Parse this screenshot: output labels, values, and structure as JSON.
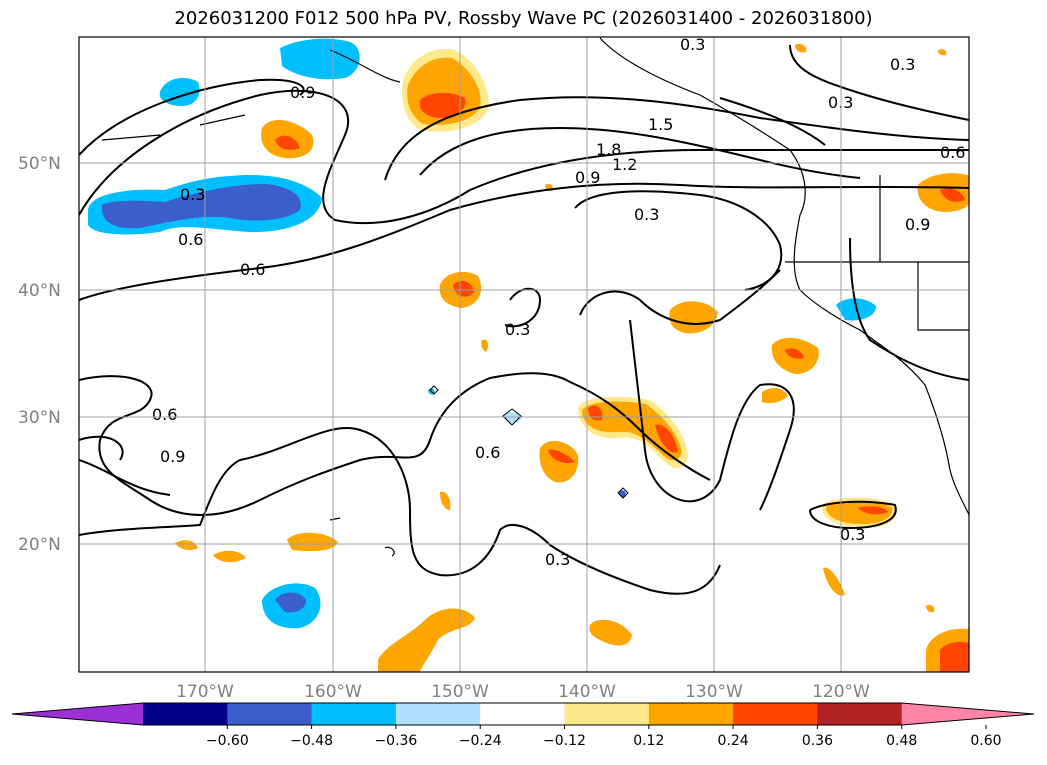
{
  "title": "2026031200 F012 500 hPa PV, Rossby Wave PC (2026031400 - 2026031800)",
  "map": {
    "lat_ticks": [
      "50°N",
      "40°N",
      "30°N",
      "20°N"
    ],
    "lon_ticks": [
      "170°W",
      "160°W",
      "150°W",
      "140°W",
      "130°W",
      "120°W"
    ],
    "contour_labels": [
      "0.3",
      "0.3",
      "0.3",
      "0.3",
      "0.3",
      "0.3",
      "0.3",
      "0.3",
      "0.6",
      "0.6",
      "0.6",
      "0.6",
      "0.6",
      "0.9",
      "0.9",
      "0.9",
      "0.9",
      "1.2",
      "1.5",
      "1.8"
    ]
  },
  "colorbar": {
    "ticks": [
      "−0.60",
      "−0.48",
      "−0.36",
      "−0.24",
      "−0.12",
      "0.12",
      "0.24",
      "0.36",
      "0.48",
      "0.60"
    ],
    "colors": [
      "#9b30d9",
      "#00008b",
      "#3a5fcd",
      "#00bfff",
      "#b0e2ff",
      "#ffffff",
      "#ffe98a",
      "#ffa500",
      "#ff4500",
      "#b22222",
      "#ff85a8"
    ]
  }
}
